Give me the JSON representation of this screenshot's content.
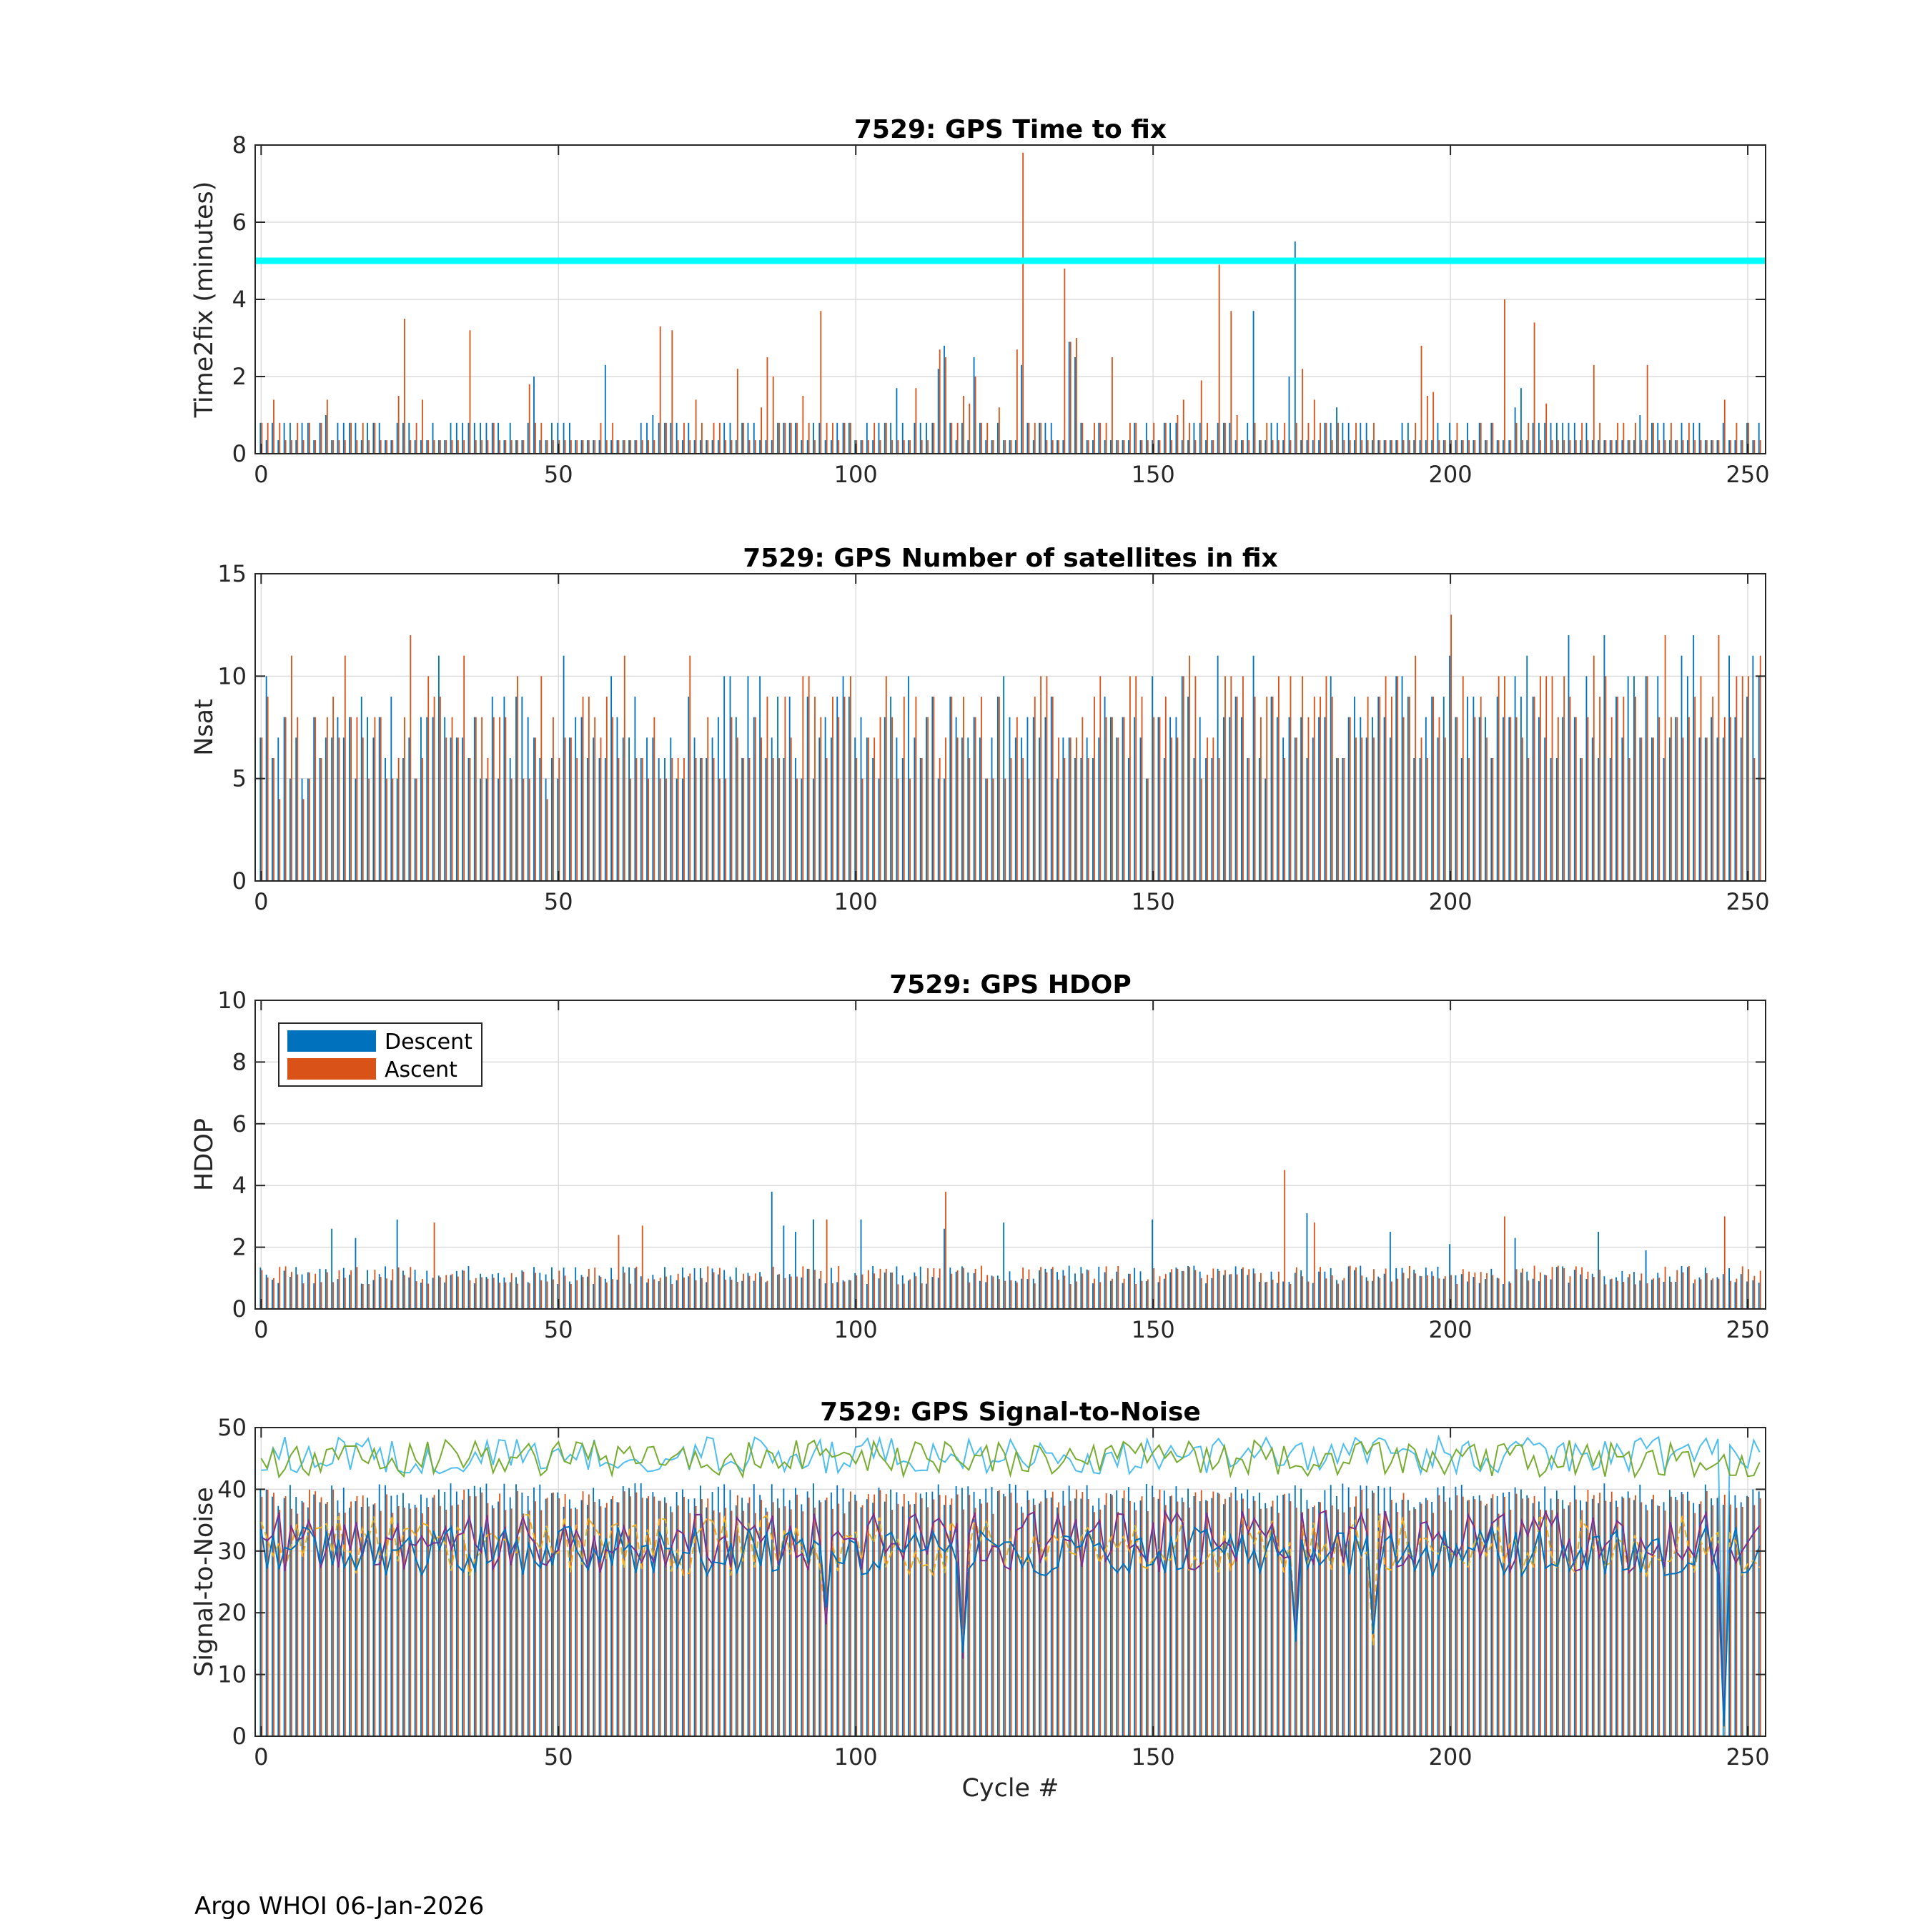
{
  "footer": "Argo WHOI 06-Jan-2026",
  "legend": {
    "descent": "Descent",
    "ascent": "Ascent"
  },
  "colors": {
    "descent": "#0072BD",
    "ascent": "#D95319",
    "threshold": "#00FFFF",
    "snr1": "#4DBEEE",
    "snr2": "#77AC30",
    "snr3": "#EDB120",
    "snr4": "#7E2F8E",
    "snr5": "#0072BD"
  },
  "chart_data": [
    {
      "type": "bar",
      "title": "7529: GPS Time to fix",
      "xlabel": "",
      "ylabel": "Time2fix (minutes)",
      "xlim": [
        -1,
        253
      ],
      "ylim": [
        0,
        8
      ],
      "xticks": [
        0,
        50,
        100,
        150,
        200,
        250
      ],
      "yticks": [
        0,
        2,
        4,
        6,
        8
      ],
      "grid": true,
      "threshold": 5,
      "typical": {
        "descent": [
          0.35,
          0.8
        ],
        "ascent": [
          0.35,
          0.8
        ]
      },
      "series": [
        {
          "name": "Descent",
          "spikes": [
            [
              11,
              1.0
            ],
            [
              46,
              2.0
            ],
            [
              58,
              2.3
            ],
            [
              66,
              1.0
            ],
            [
              107,
              1.7
            ],
            [
              114,
              2.2
            ],
            [
              115,
              2.8
            ],
            [
              120,
              2.5
            ],
            [
              128,
              2.3
            ],
            [
              136,
              2.9
            ],
            [
              137,
              2.5
            ],
            [
              167,
              3.7
            ],
            [
              173,
              2.0
            ],
            [
              174,
              5.5
            ],
            [
              181,
              1.2
            ],
            [
              211,
              1.2
            ],
            [
              212,
              1.7
            ],
            [
              232,
              1.0
            ]
          ]
        },
        {
          "name": "Ascent",
          "spikes": [
            [
              2,
              1.4
            ],
            [
              11,
              1.4
            ],
            [
              23,
              1.5
            ],
            [
              24,
              3.5
            ],
            [
              27,
              1.4
            ],
            [
              35,
              3.2
            ],
            [
              45,
              1.8
            ],
            [
              67,
              3.3
            ],
            [
              69,
              3.2
            ],
            [
              73,
              1.4
            ],
            [
              80,
              2.2
            ],
            [
              84,
              1.2
            ],
            [
              85,
              2.5
            ],
            [
              86,
              2.0
            ],
            [
              91,
              1.5
            ],
            [
              94,
              3.7
            ],
            [
              110,
              1.7
            ],
            [
              114,
              2.7
            ],
            [
              115,
              2.5
            ],
            [
              118,
              1.5
            ],
            [
              119,
              1.3
            ],
            [
              120,
              2.0
            ],
            [
              124,
              1.2
            ],
            [
              127,
              2.7
            ],
            [
              128,
              7.8
            ],
            [
              135,
              4.8
            ],
            [
              136,
              2.9
            ],
            [
              137,
              3.0
            ],
            [
              143,
              2.5
            ],
            [
              154,
              1.0
            ],
            [
              155,
              1.4
            ],
            [
              158,
              1.9
            ],
            [
              161,
              4.9
            ],
            [
              163,
              3.7
            ],
            [
              164,
              1.0
            ],
            [
              175,
              2.2
            ],
            [
              177,
              1.4
            ],
            [
              195,
              2.8
            ],
            [
              196,
              1.5
            ],
            [
              197,
              1.6
            ],
            [
              209,
              4.0
            ],
            [
              214,
              3.4
            ],
            [
              216,
              1.3
            ],
            [
              224,
              2.3
            ],
            [
              233,
              2.3
            ],
            [
              246,
              1.4
            ]
          ]
        }
      ]
    },
    {
      "type": "bar",
      "title": "7529: GPS Number of satellites in fix",
      "xlabel": "",
      "ylabel": "Nsat",
      "xlim": [
        -1,
        253
      ],
      "ylim": [
        0,
        15
      ],
      "xticks": [
        0,
        50,
        100,
        150,
        200,
        250
      ],
      "yticks": [
        0,
        5,
        10,
        15
      ],
      "grid": true,
      "typical": {
        "min": 4,
        "max": 12
      },
      "series": [
        {
          "name": "Descent",
          "spikes": [
            [
              1,
              10
            ],
            [
              30,
              11
            ],
            [
              51,
              11
            ],
            [
              59,
              10
            ],
            [
              78,
              10
            ],
            [
              84,
              10
            ],
            [
              98,
              10
            ],
            [
              125,
              10
            ],
            [
              150,
              10
            ],
            [
              161,
              11
            ],
            [
              167,
              11
            ],
            [
              191,
              10
            ],
            [
              200,
              11
            ],
            [
              213,
              11
            ],
            [
              220,
              12
            ],
            [
              226,
              12
            ],
            [
              239,
              11
            ],
            [
              241,
              12
            ],
            [
              247,
              11
            ],
            [
              251,
              11
            ]
          ]
        },
        {
          "name": "Ascent",
          "spikes": [
            [
              5,
              11
            ],
            [
              14,
              11
            ],
            [
              25,
              12
            ],
            [
              28,
              10
            ],
            [
              34,
              11
            ],
            [
              43,
              10
            ],
            [
              47,
              10
            ],
            [
              61,
              11
            ],
            [
              72,
              11
            ],
            [
              92,
              10
            ],
            [
              99,
              10
            ],
            [
              105,
              10
            ],
            [
              131,
              10
            ],
            [
              141,
              10
            ],
            [
              156,
              11
            ],
            [
              175,
              10
            ],
            [
              194,
              11
            ],
            [
              200,
              13
            ],
            [
              215,
              10
            ],
            [
              224,
              11
            ],
            [
              236,
              12
            ],
            [
              242,
              10
            ],
            [
              245,
              12
            ],
            [
              252,
              11
            ]
          ]
        }
      ]
    },
    {
      "type": "bar",
      "title": "7529: GPS HDOP",
      "xlabel": "",
      "ylabel": "HDOP",
      "xlim": [
        -1,
        253
      ],
      "ylim": [
        0,
        10
      ],
      "xticks": [
        0,
        50,
        100,
        150,
        200,
        250
      ],
      "yticks": [
        0,
        2,
        4,
        6,
        8,
        10
      ],
      "grid": true,
      "legend": "top-left",
      "typical": {
        "min": 0.8,
        "max": 1.8
      },
      "series": [
        {
          "name": "Descent",
          "spikes": [
            [
              12,
              2.6
            ],
            [
              16,
              2.3
            ],
            [
              23,
              2.9
            ],
            [
              86,
              3.8
            ],
            [
              88,
              2.7
            ],
            [
              90,
              2.5
            ],
            [
              93,
              2.9
            ],
            [
              101,
              2.9
            ],
            [
              115,
              2.6
            ],
            [
              125,
              2.8
            ],
            [
              150,
              2.9
            ],
            [
              176,
              3.1
            ],
            [
              190,
              2.5
            ],
            [
              200,
              2.1
            ],
            [
              211,
              2.3
            ],
            [
              225,
              2.5
            ],
            [
              233,
              1.9
            ]
          ]
        },
        {
          "name": "Ascent",
          "spikes": [
            [
              29,
              2.8
            ],
            [
              60,
              2.4
            ],
            [
              64,
              2.7
            ],
            [
              95,
              2.9
            ],
            [
              115,
              3.8
            ],
            [
              172,
              4.5
            ],
            [
              177,
              2.8
            ],
            [
              209,
              3.0
            ],
            [
              246,
              3.0
            ]
          ]
        }
      ]
    },
    {
      "type": "bar",
      "title": "7529: GPS Signal-to-Noise",
      "xlabel": "Cycle #",
      "ylabel": "Signal-to-Noise",
      "xlim": [
        -1,
        253
      ],
      "ylim": [
        0,
        50
      ],
      "xticks": [
        0,
        50,
        100,
        150,
        200,
        250
      ],
      "yticks": [
        0,
        10,
        20,
        30,
        40,
        50
      ],
      "grid": true,
      "typical_bars": {
        "descent": [
          37,
          41
        ],
        "ascent": [
          36,
          40
        ]
      },
      "lines": [
        {
          "mean": 45.5,
          "amplitude": 3.0
        },
        {
          "mean": 45.0,
          "amplitude": 3.0
        },
        {
          "mean": 31.0,
          "amplitude": 5.0
        },
        {
          "mean": 31.5,
          "amplitude": 5.0
        },
        {
          "mean": 30.0,
          "amplitude": 4.0
        }
      ],
      "dips": [
        [
          95,
          18
        ],
        [
          118,
          12
        ],
        [
          174,
          15
        ],
        [
          187,
          14
        ],
        [
          246,
          0
        ]
      ]
    }
  ]
}
